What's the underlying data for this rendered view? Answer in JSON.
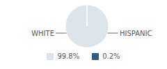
{
  "chart_data": {
    "type": "pie",
    "categories": [
      "WHITE",
      "HISPANIC"
    ],
    "values": [
      99.8,
      0.2
    ],
    "value_labels": [
      "99.8%",
      "0.2%"
    ],
    "colors": [
      "#dce4ec",
      "#2e5a86"
    ],
    "legend": "bottom"
  }
}
